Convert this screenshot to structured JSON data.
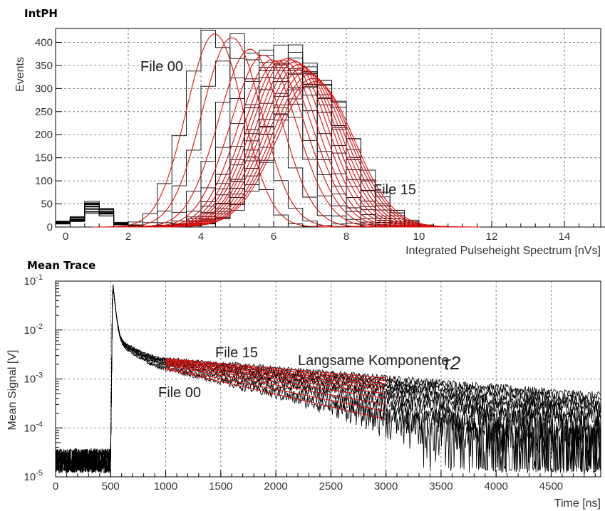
{
  "chart_data": [
    {
      "type": "line",
      "title": "IntPH",
      "xlabel": "Integrated Pulseheight Spectrum [nVs]",
      "ylabel": "Events",
      "xlim": [
        0,
        15
      ],
      "ylim": [
        0,
        430
      ],
      "x_ticks": [
        "0",
        "2",
        "4",
        "6",
        "8",
        "10",
        "12",
        "14"
      ],
      "y_ticks": [
        "0",
        "50",
        "100",
        "150",
        "200",
        "250",
        "300",
        "350",
        "400"
      ],
      "grid": true,
      "annotations": [
        "File 00",
        "File 15"
      ],
      "colors": {
        "histogram": "#000000",
        "fit": "#dd1111"
      },
      "series_description": "16 step histograms (black) with Gaussian fits (red), peak shifting from File 00 to File 15",
      "series": [
        {
          "mean": 4.38,
          "sigma": 0.78,
          "amp": 418
        },
        {
          "mean": 4.85,
          "sigma": 0.82,
          "amp": 410
        },
        {
          "mean": 5.35,
          "sigma": 0.86,
          "amp": 385
        },
        {
          "mean": 5.72,
          "sigma": 0.9,
          "amp": 372
        },
        {
          "mean": 5.95,
          "sigma": 0.92,
          "amp": 362
        },
        {
          "mean": 6.12,
          "sigma": 0.94,
          "amp": 360
        },
        {
          "mean": 6.25,
          "sigma": 0.95,
          "amp": 362
        },
        {
          "mean": 6.38,
          "sigma": 0.97,
          "amp": 365
        },
        {
          "mean": 6.5,
          "sigma": 0.98,
          "amp": 362
        },
        {
          "mean": 6.6,
          "sigma": 1.0,
          "amp": 358
        },
        {
          "mean": 6.7,
          "sigma": 1.01,
          "amp": 352
        },
        {
          "mean": 6.8,
          "sigma": 1.02,
          "amp": 345
        },
        {
          "mean": 6.9,
          "sigma": 1.03,
          "amp": 338
        },
        {
          "mean": 7.0,
          "sigma": 1.04,
          "amp": 330
        },
        {
          "mean": 7.08,
          "sigma": 1.05,
          "amp": 322
        },
        {
          "mean": 7.15,
          "sigma": 1.06,
          "amp": 315
        }
      ],
      "low_peak": {
        "x": [
          0.3,
          0.6,
          0.9,
          1.2,
          1.5,
          1.8,
          2.1
        ],
        "y": [
          10,
          18,
          25,
          20,
          12,
          7,
          3
        ]
      }
    },
    {
      "type": "line",
      "title": "Mean Trace",
      "xlabel": "Time [ns]",
      "ylabel": "Mean Signal [V]",
      "xlim": [
        0,
        4950
      ],
      "ylim": [
        1e-05,
        0.1
      ],
      "yscale": "log",
      "x_ticks": [
        "0",
        "500",
        "1000",
        "1500",
        "2000",
        "2500",
        "3000",
        "3500",
        "4000",
        "4500"
      ],
      "y_ticks": [
        {
          "base": "10",
          "exp": "-5"
        },
        {
          "base": "10",
          "exp": "-4"
        },
        {
          "base": "10",
          "exp": "-3"
        },
        {
          "base": "10",
          "exp": "-2"
        },
        {
          "base": "10",
          "exp": "-1"
        }
      ],
      "grid": true,
      "annotations": [
        "File 15",
        "Langsame Komponente",
        "τ2",
        "File 00"
      ],
      "colors": {
        "trace": "#000000",
        "fit": "#dd1111"
      },
      "baseline_level": 2e-05,
      "pulse_start_ns": 500,
      "pulse_peak": 0.1,
      "tail_start_ns": 600,
      "tail_start_value": 0.006,
      "fit_range_ns": [
        1000,
        3000
      ],
      "fit_lines": [
        {
          "v1000": 0.0026,
          "v3000": 0.00105
        },
        {
          "v1000": 0.0025,
          "v3000": 0.00092
        },
        {
          "v1000": 0.0024,
          "v3000": 0.0008
        },
        {
          "v1000": 0.0023,
          "v3000": 0.0007
        },
        {
          "v1000": 0.0022,
          "v3000": 0.0006
        },
        {
          "v1000": 0.0021,
          "v3000": 0.0005
        },
        {
          "v1000": 0.002,
          "v3000": 0.0004
        },
        {
          "v1000": 0.0019,
          "v3000": 0.0003
        },
        {
          "v1000": 0.0017,
          "v3000": 0.00022
        },
        {
          "v1000": 0.0016,
          "v3000": 0.00015
        }
      ]
    }
  ]
}
